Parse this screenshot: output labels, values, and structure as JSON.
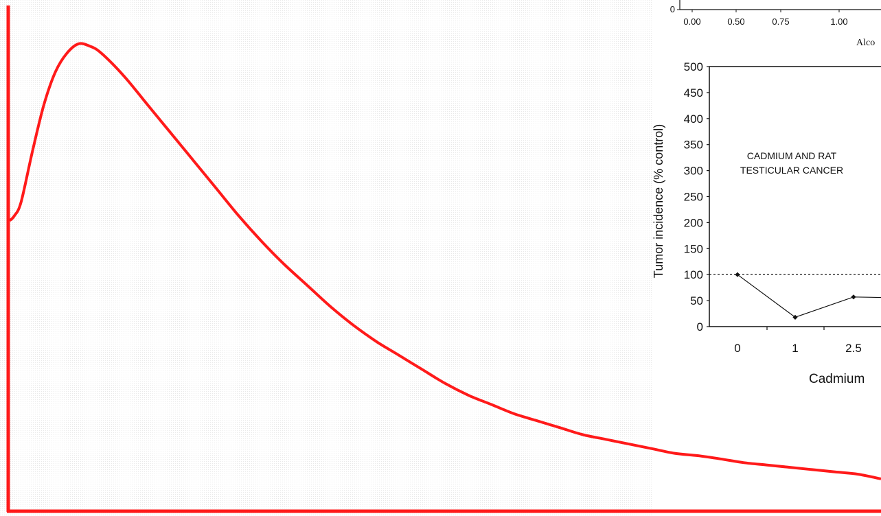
{
  "chart_data": [
    {
      "type": "line",
      "title": "",
      "xlabel": "",
      "ylabel": "",
      "show_ticks": false,
      "color": "#ff1a1a",
      "x": [
        0,
        0.1,
        0.25,
        0.5,
        0.75,
        1.0,
        1.25,
        1.5,
        1.75,
        2.0,
        2.5,
        3.0,
        3.5,
        4.0,
        4.5,
        5.0,
        5.5,
        6.0,
        6.5,
        7.0,
        7.5,
        8.0,
        8.5,
        9.0,
        9.5,
        10.0,
        10.5,
        11.0,
        11.5,
        12.0,
        12.5,
        13.0,
        13.5,
        14.0,
        14.5,
        15.0,
        15.5,
        16.0,
        16.5,
        17.0,
        17.5,
        18.0,
        18.5,
        19.0
      ],
      "y": [
        0.62,
        0.63,
        0.66,
        0.77,
        0.87,
        0.94,
        0.98,
        1.0,
        0.995,
        0.98,
        0.93,
        0.87,
        0.81,
        0.75,
        0.69,
        0.63,
        0.575,
        0.525,
        0.48,
        0.435,
        0.395,
        0.36,
        0.33,
        0.3,
        0.27,
        0.245,
        0.225,
        0.205,
        0.19,
        0.175,
        0.16,
        0.15,
        0.14,
        0.13,
        0.12,
        0.115,
        0.108,
        0.1,
        0.095,
        0.09,
        0.085,
        0.08,
        0.075,
        0.065
      ],
      "xlim": [
        0,
        19
      ],
      "ylim": [
        0,
        1.05
      ]
    },
    {
      "type": "line",
      "partial": true,
      "title": "CADMIUM AND RAT TESTICULAR CANCER",
      "title_lines": [
        "CADMIUM AND RAT",
        "TESTICULAR CANCER"
      ],
      "xlabel": "Cadmium",
      "ylabel": "Tumor incidence (% control)",
      "categories": [
        "0",
        "1",
        "2.5"
      ],
      "values": [
        100,
        18,
        57
      ],
      "ylim": [
        0,
        500
      ],
      "yticks": [
        "0",
        "50",
        "100",
        "150",
        "200",
        "250",
        "300",
        "350",
        "400",
        "450",
        "500"
      ],
      "reference_line": 100,
      "marker": "diamond"
    },
    {
      "type": "line",
      "partial": true,
      "xlabel": "Alco",
      "xticks": [
        "0.00",
        "0.50",
        "0.75",
        "1.00"
      ],
      "yticks": [
        "0"
      ]
    }
  ],
  "colors": {
    "curve": "#ff1a1a",
    "ink": "#111111",
    "background": "#ffffff"
  }
}
